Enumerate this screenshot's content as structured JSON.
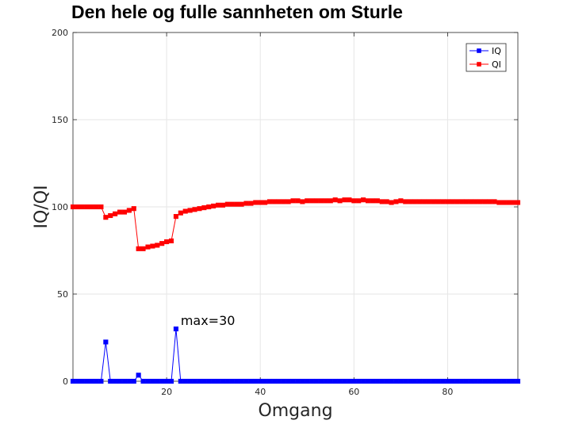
{
  "chart_data": {
    "type": "line",
    "title": "Den hele og fulle sannheten om Sturle",
    "xlabel": "Omgang",
    "ylabel": "IQ/QI",
    "xlim": [
      0,
      95
    ],
    "ylim": [
      0,
      200
    ],
    "xticks": [
      20,
      40,
      60,
      80
    ],
    "yticks": [
      0,
      50,
      100,
      150,
      200
    ],
    "grid": true,
    "legend_position": "top-right",
    "x": [
      0,
      1,
      2,
      3,
      4,
      5,
      6,
      7,
      8,
      9,
      10,
      11,
      12,
      13,
      14,
      15,
      16,
      17,
      18,
      19,
      20,
      21,
      22,
      23,
      24,
      25,
      26,
      27,
      28,
      29,
      30,
      31,
      32,
      33,
      34,
      35,
      36,
      37,
      38,
      39,
      40,
      41,
      42,
      43,
      44,
      45,
      46,
      47,
      48,
      49,
      50,
      51,
      52,
      53,
      54,
      55,
      56,
      57,
      58,
      59,
      60,
      61,
      62,
      63,
      64,
      65,
      66,
      67,
      68,
      69,
      70,
      71,
      72,
      73,
      74,
      75,
      76,
      77,
      78,
      79,
      80,
      81,
      82,
      83,
      84,
      85,
      86,
      87,
      88,
      89,
      90,
      91,
      92,
      93,
      94,
      95
    ],
    "series": [
      {
        "name": "IQ",
        "color": "#0000ff",
        "values": [
          0,
          0,
          0,
          0,
          0,
          0,
          0,
          22.5,
          0,
          0,
          0,
          0,
          0,
          0,
          3.5,
          0,
          0,
          0,
          0,
          0,
          0,
          0,
          30,
          0,
          0,
          0,
          0,
          0,
          0,
          0,
          0,
          0,
          0,
          0,
          0,
          0,
          0,
          0,
          0,
          0,
          0,
          0,
          0,
          0,
          0,
          0,
          0,
          0,
          0,
          0,
          0,
          0,
          0,
          0,
          0,
          0,
          0,
          0,
          0,
          0,
          0,
          0,
          0,
          0,
          0,
          0,
          0,
          0,
          0,
          0,
          0,
          0,
          0,
          0,
          0,
          0,
          0,
          0,
          0,
          0,
          0,
          0,
          0,
          0,
          0,
          0,
          0,
          0,
          0,
          0,
          0,
          0,
          0,
          0,
          0,
          0
        ]
      },
      {
        "name": "QI",
        "color": "#ff0000",
        "values": [
          100,
          100,
          100,
          100,
          100,
          100,
          100,
          94,
          95,
          96,
          97,
          97,
          98,
          99,
          76,
          76,
          77,
          77.5,
          78,
          79,
          80,
          80.5,
          94.5,
          96.5,
          97.5,
          98,
          98.5,
          99,
          99.5,
          100,
          100.5,
          101,
          101,
          101.5,
          101.5,
          101.5,
          101.5,
          102,
          102,
          102.5,
          102.5,
          102.5,
          103,
          103,
          103,
          103,
          103,
          103.5,
          103.5,
          103,
          103.5,
          103.5,
          103.5,
          103.5,
          103.5,
          103.5,
          104,
          103.5,
          104,
          104,
          103.5,
          103.5,
          104,
          103.5,
          103.5,
          103.5,
          103,
          103,
          102.5,
          103,
          103.5,
          103,
          103,
          103,
          103,
          103,
          103,
          103,
          103,
          103,
          103,
          103,
          103,
          103,
          103,
          103,
          103,
          103,
          103,
          103,
          103,
          102.5,
          102.5,
          102.5,
          102.5,
          102.5
        ]
      }
    ],
    "annotations": [
      {
        "text": "max=30",
        "x": 23,
        "y": 35
      }
    ]
  }
}
